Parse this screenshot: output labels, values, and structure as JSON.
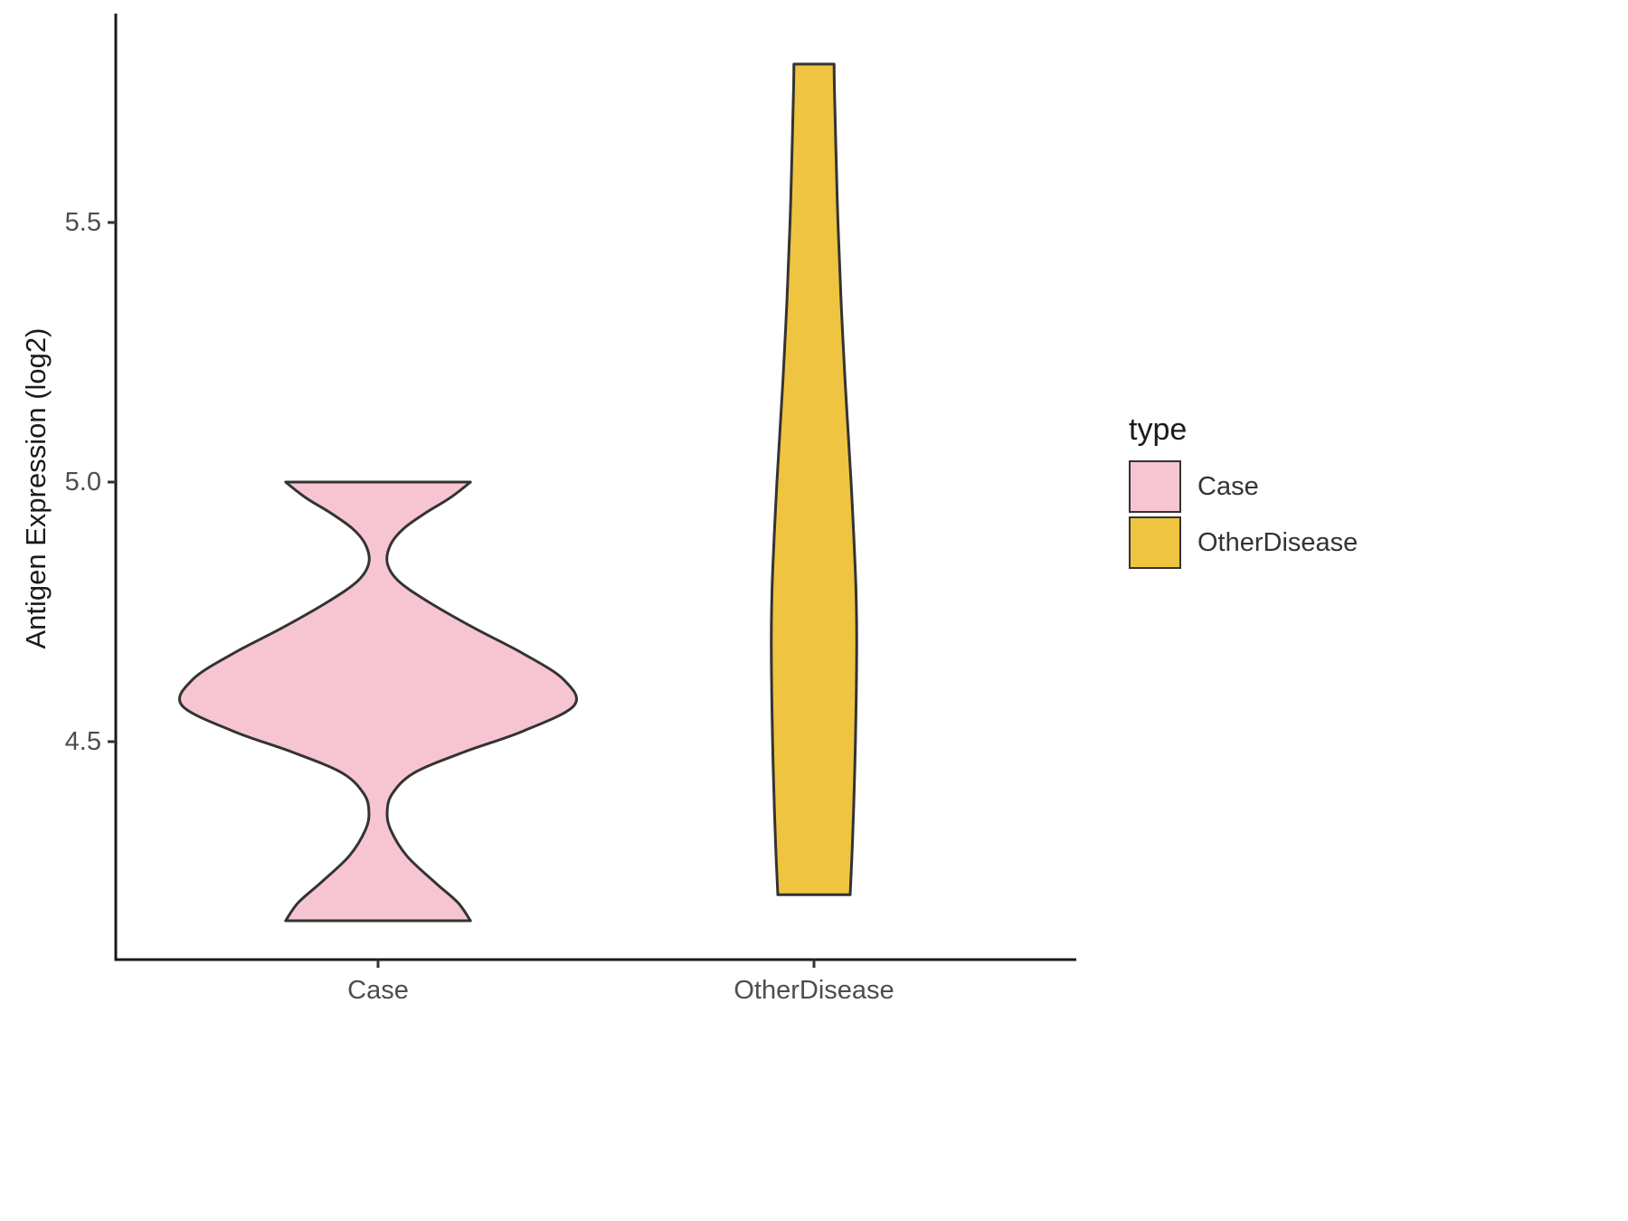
{
  "chart_data": {
    "type": "violin",
    "title": "",
    "xlabel": "",
    "ylabel": "Antigen Expression (log2)",
    "categories": [
      "Case",
      "OtherDisease"
    ],
    "y_ticks": [
      "4.5",
      "5.0",
      "5.5"
    ],
    "y_tick_values": [
      4.5,
      5.0,
      5.5
    ],
    "ylim": [
      4.07,
      5.9
    ],
    "grid": false,
    "axis_color": "#1a1a1a",
    "tick_label_color": "#4d4d4d",
    "legend": {
      "title": "type",
      "position": "right",
      "entries": [
        {
          "label": "Case",
          "fill": "#F7C5D2"
        },
        {
          "label": "OtherDisease",
          "fill": "#EFC440"
        }
      ]
    },
    "series": [
      {
        "name": "Case",
        "fill": "#F7C5D2",
        "outline": "#333333",
        "y_min": 4.155,
        "y_max": 5.0,
        "profile": [
          [
            4.155,
            0.212
          ],
          [
            4.19,
            0.183
          ],
          [
            4.23,
            0.129
          ],
          [
            4.28,
            0.066
          ],
          [
            4.33,
            0.029
          ],
          [
            4.365,
            0.021
          ],
          [
            4.4,
            0.033
          ],
          [
            4.44,
            0.083
          ],
          [
            4.48,
            0.197
          ],
          [
            4.52,
            0.332
          ],
          [
            4.57,
            0.45
          ],
          [
            4.62,
            0.425
          ],
          [
            4.67,
            0.332
          ],
          [
            4.72,
            0.218
          ],
          [
            4.77,
            0.114
          ],
          [
            4.81,
            0.046
          ],
          [
            4.845,
            0.021
          ],
          [
            4.88,
            0.029
          ],
          [
            4.91,
            0.058
          ],
          [
            4.94,
            0.108
          ],
          [
            4.97,
            0.166
          ],
          [
            5.0,
            0.212
          ]
        ]
      },
      {
        "name": "OtherDisease",
        "fill": "#EFC440",
        "outline": "#333333",
        "y_min": 4.205,
        "y_max": 5.805,
        "profile": [
          [
            4.205,
            0.083
          ],
          [
            4.3,
            0.088
          ],
          [
            4.4,
            0.092
          ],
          [
            4.5,
            0.095
          ],
          [
            4.6,
            0.097
          ],
          [
            4.7,
            0.098
          ],
          [
            4.8,
            0.096
          ],
          [
            4.9,
            0.091
          ],
          [
            5.0,
            0.085
          ],
          [
            5.1,
            0.078
          ],
          [
            5.2,
            0.071
          ],
          [
            5.35,
            0.062
          ],
          [
            5.5,
            0.055
          ],
          [
            5.65,
            0.05
          ],
          [
            5.75,
            0.047
          ],
          [
            5.805,
            0.046
          ]
        ]
      }
    ]
  }
}
